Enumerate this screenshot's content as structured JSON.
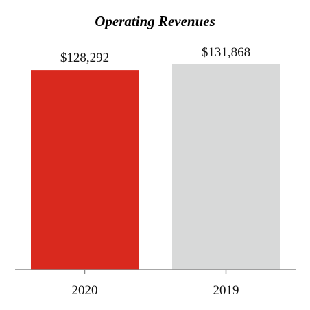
{
  "chart_data": {
    "type": "bar",
    "title": "Operating Revenues",
    "categories": [
      "2020",
      "2019"
    ],
    "values": [
      128292,
      131868
    ],
    "value_labels": [
      "$128,292",
      "$131,868"
    ],
    "colors": [
      "#d9291e",
      "#d8d9d9"
    ],
    "xlabel": "",
    "ylabel": "",
    "grid": false,
    "legend": "none"
  }
}
